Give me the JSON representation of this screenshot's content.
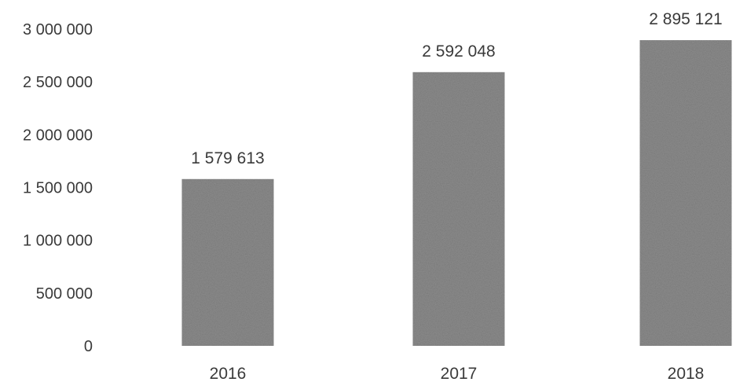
{
  "chart_data": {
    "type": "bar",
    "title": "",
    "xlabel": "",
    "ylabel": "",
    "categories": [
      "2016",
      "2017",
      "2018"
    ],
    "values": [
      1579613,
      2592048,
      2895121
    ],
    "value_labels": [
      "1 579 613",
      "2 592 048",
      "2 895 121"
    ],
    "ylim": [
      0,
      3000000
    ],
    "yticks": [
      0,
      500000,
      1000000,
      1500000,
      2000000,
      2500000,
      3000000
    ],
    "ytick_labels": [
      "0",
      "500 000",
      "1 000 000",
      "1 500 000",
      "2 000 000",
      "2 500 000",
      "3 000 000"
    ],
    "grid": false,
    "legend": "none",
    "bar_color": "#8c8c8c"
  }
}
